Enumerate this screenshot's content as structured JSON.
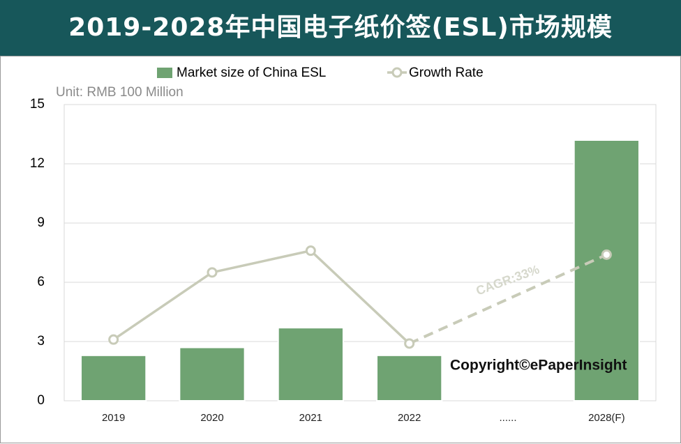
{
  "chart_data": {
    "type": "bar_line",
    "title": "2019-2028年中国电子纸价签(ESL)市场规模",
    "unit_label": "Unit: RMB 100 Million",
    "annotation": "CAGR:33%",
    "copyright": "Copyright©ePaperInsight",
    "categories": [
      "2019",
      "2020",
      "2021",
      "2022",
      "......",
      "2028(F)"
    ],
    "series": [
      {
        "name": "Market size of China ESL",
        "type": "bar",
        "color": "#6fa372",
        "values": [
          2.3,
          2.7,
          3.7,
          2.3,
          null,
          13.2
        ]
      },
      {
        "name": "Growth Rate",
        "type": "line",
        "color": "#c8cbb8",
        "values": [
          3.1,
          6.5,
          7.6,
          2.9,
          null,
          7.4
        ]
      }
    ],
    "ylim": [
      0,
      15
    ],
    "yticks": [
      0,
      3,
      6,
      9,
      12,
      15
    ],
    "grid": true
  }
}
